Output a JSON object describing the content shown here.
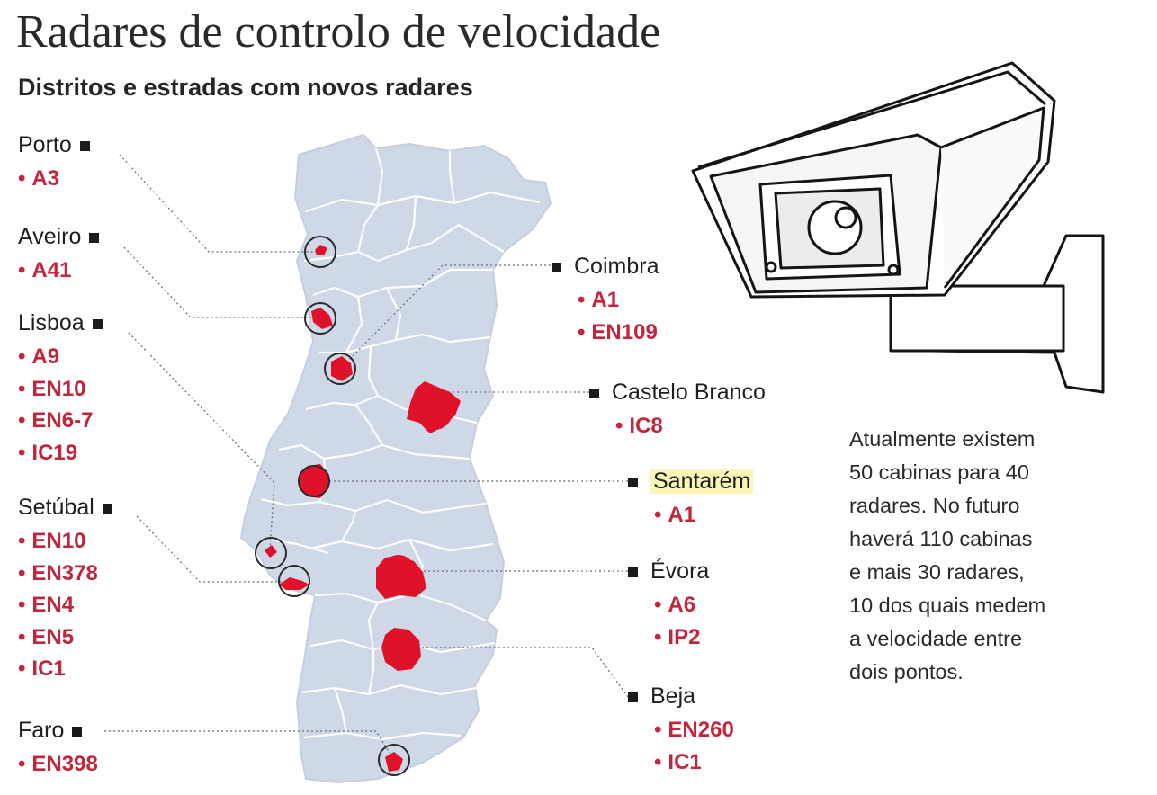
{
  "header": {
    "title": "Radares de controlo de velocidade",
    "subtitle": "Distritos e estradas com novos radares"
  },
  "colors": {
    "map_fill": "#cfd8e6",
    "border_line": "#ffffff",
    "radar_area": "#e0122a",
    "road_text": "#c3253d",
    "highlight": "#fbf6b8"
  },
  "districts": [
    {
      "name": "Porto",
      "roads": [
        "A3"
      ]
    },
    {
      "name": "Aveiro",
      "roads": [
        "A41"
      ]
    },
    {
      "name": "Lisboa",
      "roads": [
        "A9",
        "EN10",
        "EN6-7",
        "IC19"
      ]
    },
    {
      "name": "Setúbal",
      "roads": [
        "EN10",
        "EN378",
        "EN4",
        "EN5",
        "IC1"
      ]
    },
    {
      "name": "Faro",
      "roads": [
        "EN398"
      ]
    },
    {
      "name": "Coimbra",
      "roads": [
        "A1",
        "EN109"
      ]
    },
    {
      "name": "Castelo Branco",
      "roads": [
        "IC8"
      ]
    },
    {
      "name": "Santarém",
      "roads": [
        "A1"
      ],
      "highlighted": true
    },
    {
      "name": "Évora",
      "roads": [
        "A6",
        "IP2"
      ]
    },
    {
      "name": "Beja",
      "roads": [
        "EN260",
        "IC1"
      ]
    }
  ],
  "note": "Atualmente existem\n50 cabinas para 40\nradares. No futuro\nhaverá 110 cabinas\ne mais 30 radares,\n10 dos quais medem\na velocidade entre\ndois pontos.",
  "icons": {
    "illustration": "speed-camera-icon",
    "map": "portugal-map",
    "marker": "square-marker-icon"
  }
}
